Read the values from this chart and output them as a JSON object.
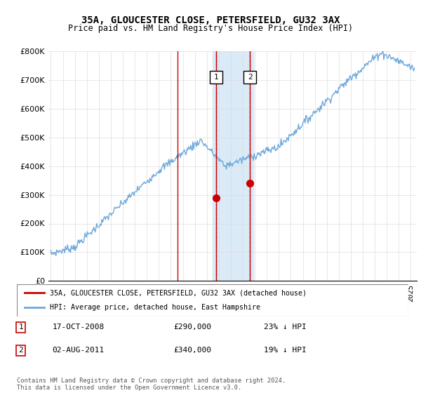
{
  "title": "35A, GLOUCESTER CLOSE, PETERSFIELD, GU32 3AX",
  "subtitle": "Price paid vs. HM Land Registry's House Price Index (HPI)",
  "legend_line1": "35A, GLOUCESTER CLOSE, PETERSFIELD, GU32 3AX (detached house)",
  "legend_line2": "HPI: Average price, detached house, East Hampshire",
  "sale1_date": "17-OCT-2008",
  "sale1_price": "£290,000",
  "sale1_pct": "23% ↓ HPI",
  "sale2_date": "02-AUG-2011",
  "sale2_price": "£340,000",
  "sale2_pct": "19% ↓ HPI",
  "footer": "Contains HM Land Registry data © Crown copyright and database right 2024.\nThis data is licensed under the Open Government Licence v3.0.",
  "sale1_year": 2008.8,
  "sale1_value": 290000,
  "sale2_year": 2011.6,
  "sale2_value": 340000,
  "shade_x_start": 2008.5,
  "shade_x_end": 2011.9,
  "hpi_color": "#6fa8dc",
  "property_color": "#cc0000",
  "shade_color": "#d6e8f7",
  "vline_color": "#cc0000",
  "ylim": [
    0,
    800000
  ],
  "xlim": [
    1994.8,
    2025.5
  ],
  "yticks": [
    0,
    100000,
    200000,
    300000,
    400000,
    500000,
    600000,
    700000,
    800000
  ],
  "ylabel_fmt": [
    "£0",
    "£100K",
    "£200K",
    "£300K",
    "£400K",
    "£500K",
    "£600K",
    "£700K",
    "£800K"
  ]
}
